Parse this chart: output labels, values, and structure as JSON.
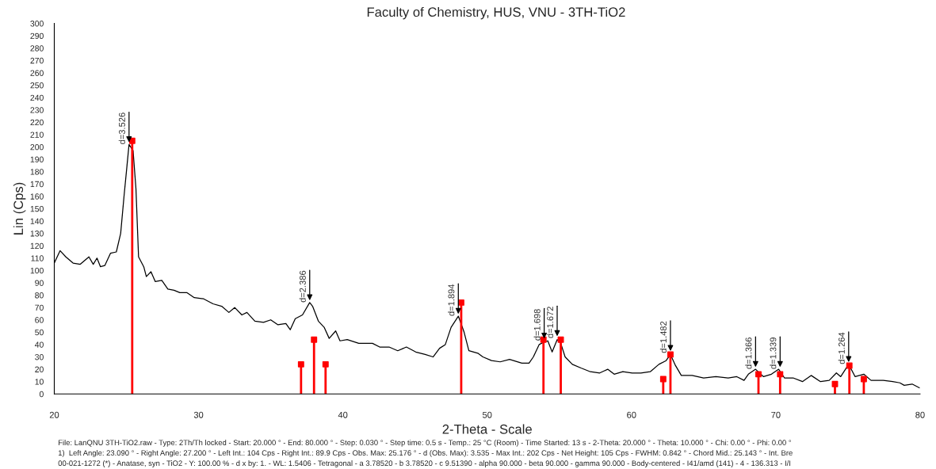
{
  "chart_data": {
    "type": "line",
    "title": "Faculty of Chemistry, HUS, VNU - 3TH-TiO2",
    "xlabel": "2-Theta - Scale",
    "ylabel": "Lin (Cps)",
    "xlim": [
      20,
      80
    ],
    "xticks": [
      20,
      30,
      40,
      50,
      60,
      70,
      80
    ],
    "ylim": [
      0,
      300
    ],
    "yticks": [
      0,
      10,
      20,
      30,
      40,
      50,
      60,
      70,
      80,
      90,
      100,
      110,
      120,
      130,
      140,
      150,
      160,
      170,
      180,
      190,
      200,
      210,
      220,
      230,
      240,
      250,
      260,
      270,
      280,
      290,
      300
    ],
    "grid": false,
    "legend": false,
    "series": [
      {
        "color": "#000000",
        "marker": "none",
        "x": [
          20.0,
          20.4,
          20.8,
          21.3,
          21.8,
          22.4,
          22.7,
          22.96,
          23.2,
          23.5,
          23.9,
          24.3,
          24.6,
          24.84,
          25.04,
          25.18,
          25.46,
          25.66,
          25.84,
          26.2,
          26.38,
          26.7,
          27.0,
          27.45,
          27.87,
          28.3,
          28.7,
          29.2,
          29.7,
          30.35,
          31.0,
          31.6,
          32.1,
          32.5,
          33.0,
          33.35,
          33.9,
          34.5,
          35.0,
          35.5,
          36.05,
          36.35,
          36.7,
          37.2,
          37.7,
          37.9,
          38.3,
          38.7,
          39.05,
          39.5,
          39.8,
          40.3,
          41.1,
          42.05,
          42.55,
          43.2,
          43.8,
          44.4,
          45.05,
          45.7,
          46.25,
          46.7,
          47.1,
          47.5,
          48.0,
          48.4,
          48.73,
          49.35,
          49.7,
          50.3,
          50.9,
          51.55,
          52.4,
          52.9,
          53.2,
          53.6,
          53.95,
          54.2,
          54.5,
          54.85,
          55.1,
          55.4,
          55.9,
          56.5,
          57.15,
          57.8,
          58.35,
          58.8,
          59.4,
          60.05,
          60.65,
          61.3,
          61.9,
          62.4,
          62.7,
          63.05,
          63.45,
          64.2,
          65.0,
          65.85,
          66.7,
          67.3,
          67.8,
          68.1,
          68.6,
          69.15,
          69.7,
          70.2,
          70.6,
          71.2,
          71.85,
          72.45,
          73.1,
          73.7,
          74.2,
          74.5,
          75.05,
          75.5,
          76.1,
          76.6,
          77.45,
          78.1,
          78.6,
          78.9,
          79.45,
          79.95
        ],
        "values": [
          106,
          116,
          111,
          106,
          105,
          111,
          105,
          110,
          103,
          104,
          114,
          115,
          130,
          161,
          185,
          202,
          197,
          166,
          111,
          103,
          95,
          99,
          91,
          92,
          85,
          84,
          82,
          82,
          78,
          77,
          73,
          71,
          66,
          70,
          64,
          66,
          59,
          58,
          60,
          56,
          57,
          52,
          61,
          64,
          74,
          71,
          59,
          54,
          45,
          51,
          43,
          44,
          41,
          41,
          38,
          38,
          35,
          38,
          34,
          32,
          30,
          37,
          40,
          54,
          63,
          50,
          35,
          33,
          30,
          27,
          26,
          28,
          25,
          25,
          30,
          40,
          42,
          43,
          34,
          44,
          41,
          30,
          24,
          21,
          18,
          17,
          20,
          16,
          18,
          17,
          17,
          18,
          24,
          27,
          32,
          23,
          15,
          15,
          13,
          14,
          13,
          14,
          11,
          16,
          20,
          14,
          16,
          20,
          13,
          13,
          10,
          15,
          10,
          11,
          17,
          14,
          24,
          14,
          16,
          11,
          11,
          10,
          9,
          7,
          8,
          5
        ]
      },
      {
        "type": "lollipop",
        "color": "#ff0000",
        "marker": "square",
        "x": [
          25.4,
          37.1,
          38.0,
          38.8,
          48.2,
          53.9,
          55.1,
          62.2,
          62.7,
          68.8,
          70.3,
          74.1,
          75.1,
          76.1
        ],
        "values": [
          205,
          24,
          44,
          24,
          74,
          44,
          44,
          12,
          32,
          16,
          16,
          8,
          23,
          12
        ]
      }
    ],
    "annotations": [
      {
        "text": "d=3.526",
        "x": 25.18,
        "y": 202
      },
      {
        "text": "d=2.386",
        "x": 37.7,
        "y": 74
      },
      {
        "text": "d=1.894",
        "x": 48.0,
        "y": 63
      },
      {
        "text": "d=1.698",
        "x": 53.95,
        "y": 43
      },
      {
        "text": "d=1.672",
        "x": 54.85,
        "y": 45
      },
      {
        "text": "d=1.482",
        "x": 62.7,
        "y": 33
      },
      {
        "text": "d=1.366",
        "x": 68.6,
        "y": 20
      },
      {
        "text": "d=1.339",
        "x": 70.3,
        "y": 20
      },
      {
        "text": "d=1.264",
        "x": 75.05,
        "y": 24
      },
      "File: LanQNU 3TH-TiO2.raw - Type: 2Th/Th locked - Start: 20.000 ° - End: 80.000 ° - Step: 0.030 ° - Step time: 0.5 s - Temp.: 25 °C (Room) - Time Started: 13 s - 2-Theta: 20.000 ° - Theta: 10.000 ° - Chi: 0.00 ° - Phi: 0.00 °",
      "1)  Left Angle: 23.090 ° - Right Angle: 27.200 ° - Left Int.: 104 Cps - Right Int.: 89.9 Cps - Obs. Max: 25.176 ° - d (Obs. Max): 3.535 - Max Int.: 202 Cps - Net Height: 105 Cps - FWHM: 0.842 ° - Chord Mid.: 25.143 ° - Int. Bre",
      "00-021-1272 (*) - Anatase, syn - TiO2 - Y: 100.00 % - d x by: 1. - WL: 1.5406 - Tetragonal - a 3.78520 - b 3.78520 - c 9.51390 - alpha 90.000 - beta 90.000 - gamma 90.000 - Body-centered - I41/amd (141) - 4 - 136.313 - I/I"
    ]
  }
}
